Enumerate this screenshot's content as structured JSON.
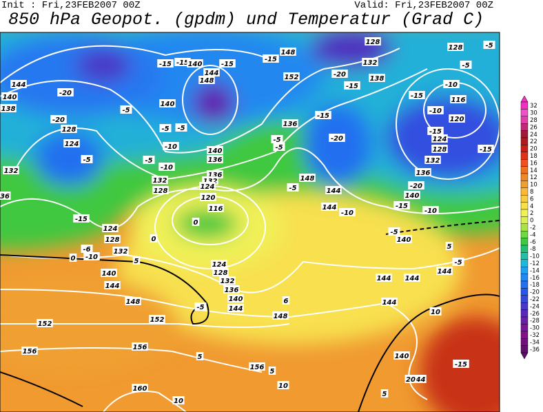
{
  "header": {
    "init": "Init : Fri,23FEB2007 00Z",
    "valid": "Valid: Fri,23FEB2007 00Z",
    "title": "850 hPa Geopot. (gpdm) und Temperatur (Grad C)"
  },
  "colorbar": {
    "ticks": [
      32,
      30,
      28,
      26,
      24,
      22,
      20,
      18,
      16,
      14,
      12,
      10,
      8,
      6,
      4,
      2,
      0,
      -2,
      -4,
      -6,
      -8,
      -10,
      -12,
      -14,
      -16,
      -18,
      -20,
      -22,
      -24,
      -26,
      -28,
      -30,
      -32,
      -34,
      -36
    ],
    "colors": [
      "#f030c0",
      "#f050c8",
      "#e040a8",
      "#c02878",
      "#a01838",
      "#b01820",
      "#c82018",
      "#e03018",
      "#f05020",
      "#f07020",
      "#f08828",
      "#f0a030",
      "#f8b838",
      "#f8cc40",
      "#f8e048",
      "#f0f058",
      "#d8f050",
      "#a8e448",
      "#70d840",
      "#40c840",
      "#20c070",
      "#20c0a8",
      "#20b8d8",
      "#20a0f0",
      "#2088f0",
      "#2070f0",
      "#2858e8",
      "#3848d8",
      "#4838c8",
      "#5828b8",
      "#6820a8",
      "#781898",
      "#801088",
      "#701078",
      "#601068"
    ]
  },
  "contour_labels": [
    -15,
    -15,
    140,
    144,
    148,
    -15,
    148,
    -15,
    152,
    -20,
    132,
    128,
    138,
    -15,
    128,
    -5,
    -5,
    -10,
    116,
    -10,
    120,
    -15,
    -15,
    124,
    128,
    -15,
    132,
    136,
    -20,
    140,
    -15,
    -10,
    -5,
    140,
    5,
    -5,
    144,
    144,
    144,
    144,
    10,
    140,
    144,
    20,
    -15,
    -15,
    -20,
    148,
    144,
    -10,
    144,
    136,
    -5,
    -5,
    -5,
    136,
    140,
    132,
    124,
    120,
    116,
    0,
    0,
    144,
    -20,
    140,
    138,
    -5,
    140,
    -5,
    -5,
    -10,
    -10,
    -5,
    136,
    128,
    124,
    -20,
    -5,
    132,
    132,
    128,
    36,
    -15,
    124,
    128,
    -6,
    -10,
    132,
    0,
    5,
    140,
    144,
    148,
    152,
    152,
    156,
    156,
    160,
    5,
    10,
    -5,
    124,
    128,
    132,
    136,
    140,
    144,
    148,
    156,
    6,
    5,
    10,
    5
  ]
}
